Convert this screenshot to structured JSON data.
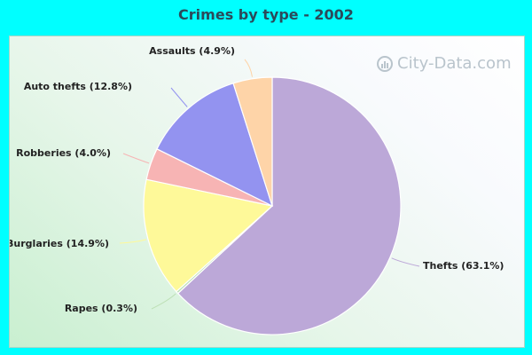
{
  "chart_data": {
    "type": "pie",
    "title": "Crimes by type - 2002",
    "slices": [
      {
        "label": "Thefts (63.1%)",
        "value": 63.1,
        "color": "#bca8d8"
      },
      {
        "label": "Rapes (0.3%)",
        "value": 0.3,
        "color": "#bde0b6"
      },
      {
        "label": "Burglaries (14.9%)",
        "value": 14.9,
        "color": "#fef999"
      },
      {
        "label": "Robberies (4.0%)",
        "value": 4.0,
        "color": "#f7b4b4"
      },
      {
        "label": "Auto thefts (12.8%)",
        "value": 12.8,
        "color": "#9393f0"
      },
      {
        "label": "Assaults (4.9%)",
        "value": 4.9,
        "color": "#fed4a8"
      }
    ]
  },
  "watermark": {
    "text": "City-Data.com"
  },
  "colors": {
    "background": "#00ffff",
    "title": "#2b4a5a"
  }
}
